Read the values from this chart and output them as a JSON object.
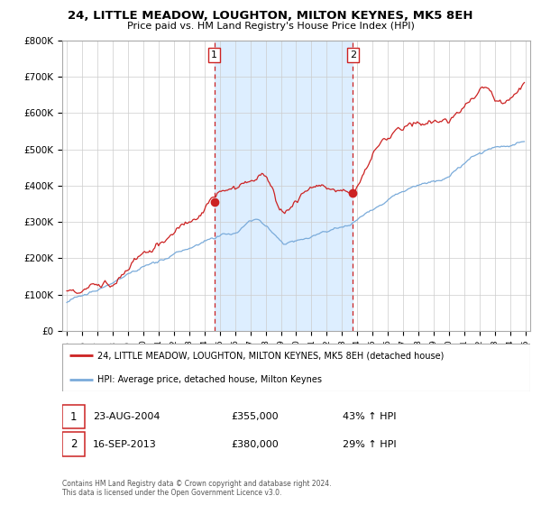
{
  "title": "24, LITTLE MEADOW, LOUGHTON, MILTON KEYNES, MK5 8EH",
  "subtitle": "Price paid vs. HM Land Registry's House Price Index (HPI)",
  "legend_line1": "24, LITTLE MEADOW, LOUGHTON, MILTON KEYNES, MK5 8EH (detached house)",
  "legend_line2": "HPI: Average price, detached house, Milton Keynes",
  "transaction1_date": "23-AUG-2004",
  "transaction1_price": 355000,
  "transaction1_pct": "43% ↑ HPI",
  "transaction2_date": "16-SEP-2013",
  "transaction2_price": 380000,
  "transaction2_pct": "29% ↑ HPI",
  "footer": "Contains HM Land Registry data © Crown copyright and database right 2024.\nThis data is licensed under the Open Government Licence v3.0.",
  "red_line_color": "#cc2222",
  "blue_line_color": "#7aabda",
  "shaded_region_color": "#ddeeff",
  "grid_color": "#cccccc",
  "background_color": "#ffffff",
  "ylim": [
    0,
    800000
  ],
  "yticks": [
    0,
    100000,
    200000,
    300000,
    400000,
    500000,
    600000,
    700000,
    800000
  ],
  "ytick_labels": [
    "£0",
    "£100K",
    "£200K",
    "£300K",
    "£400K",
    "£500K",
    "£600K",
    "£700K",
    "£800K"
  ],
  "xstart_year": 1995,
  "xend_year": 2025
}
